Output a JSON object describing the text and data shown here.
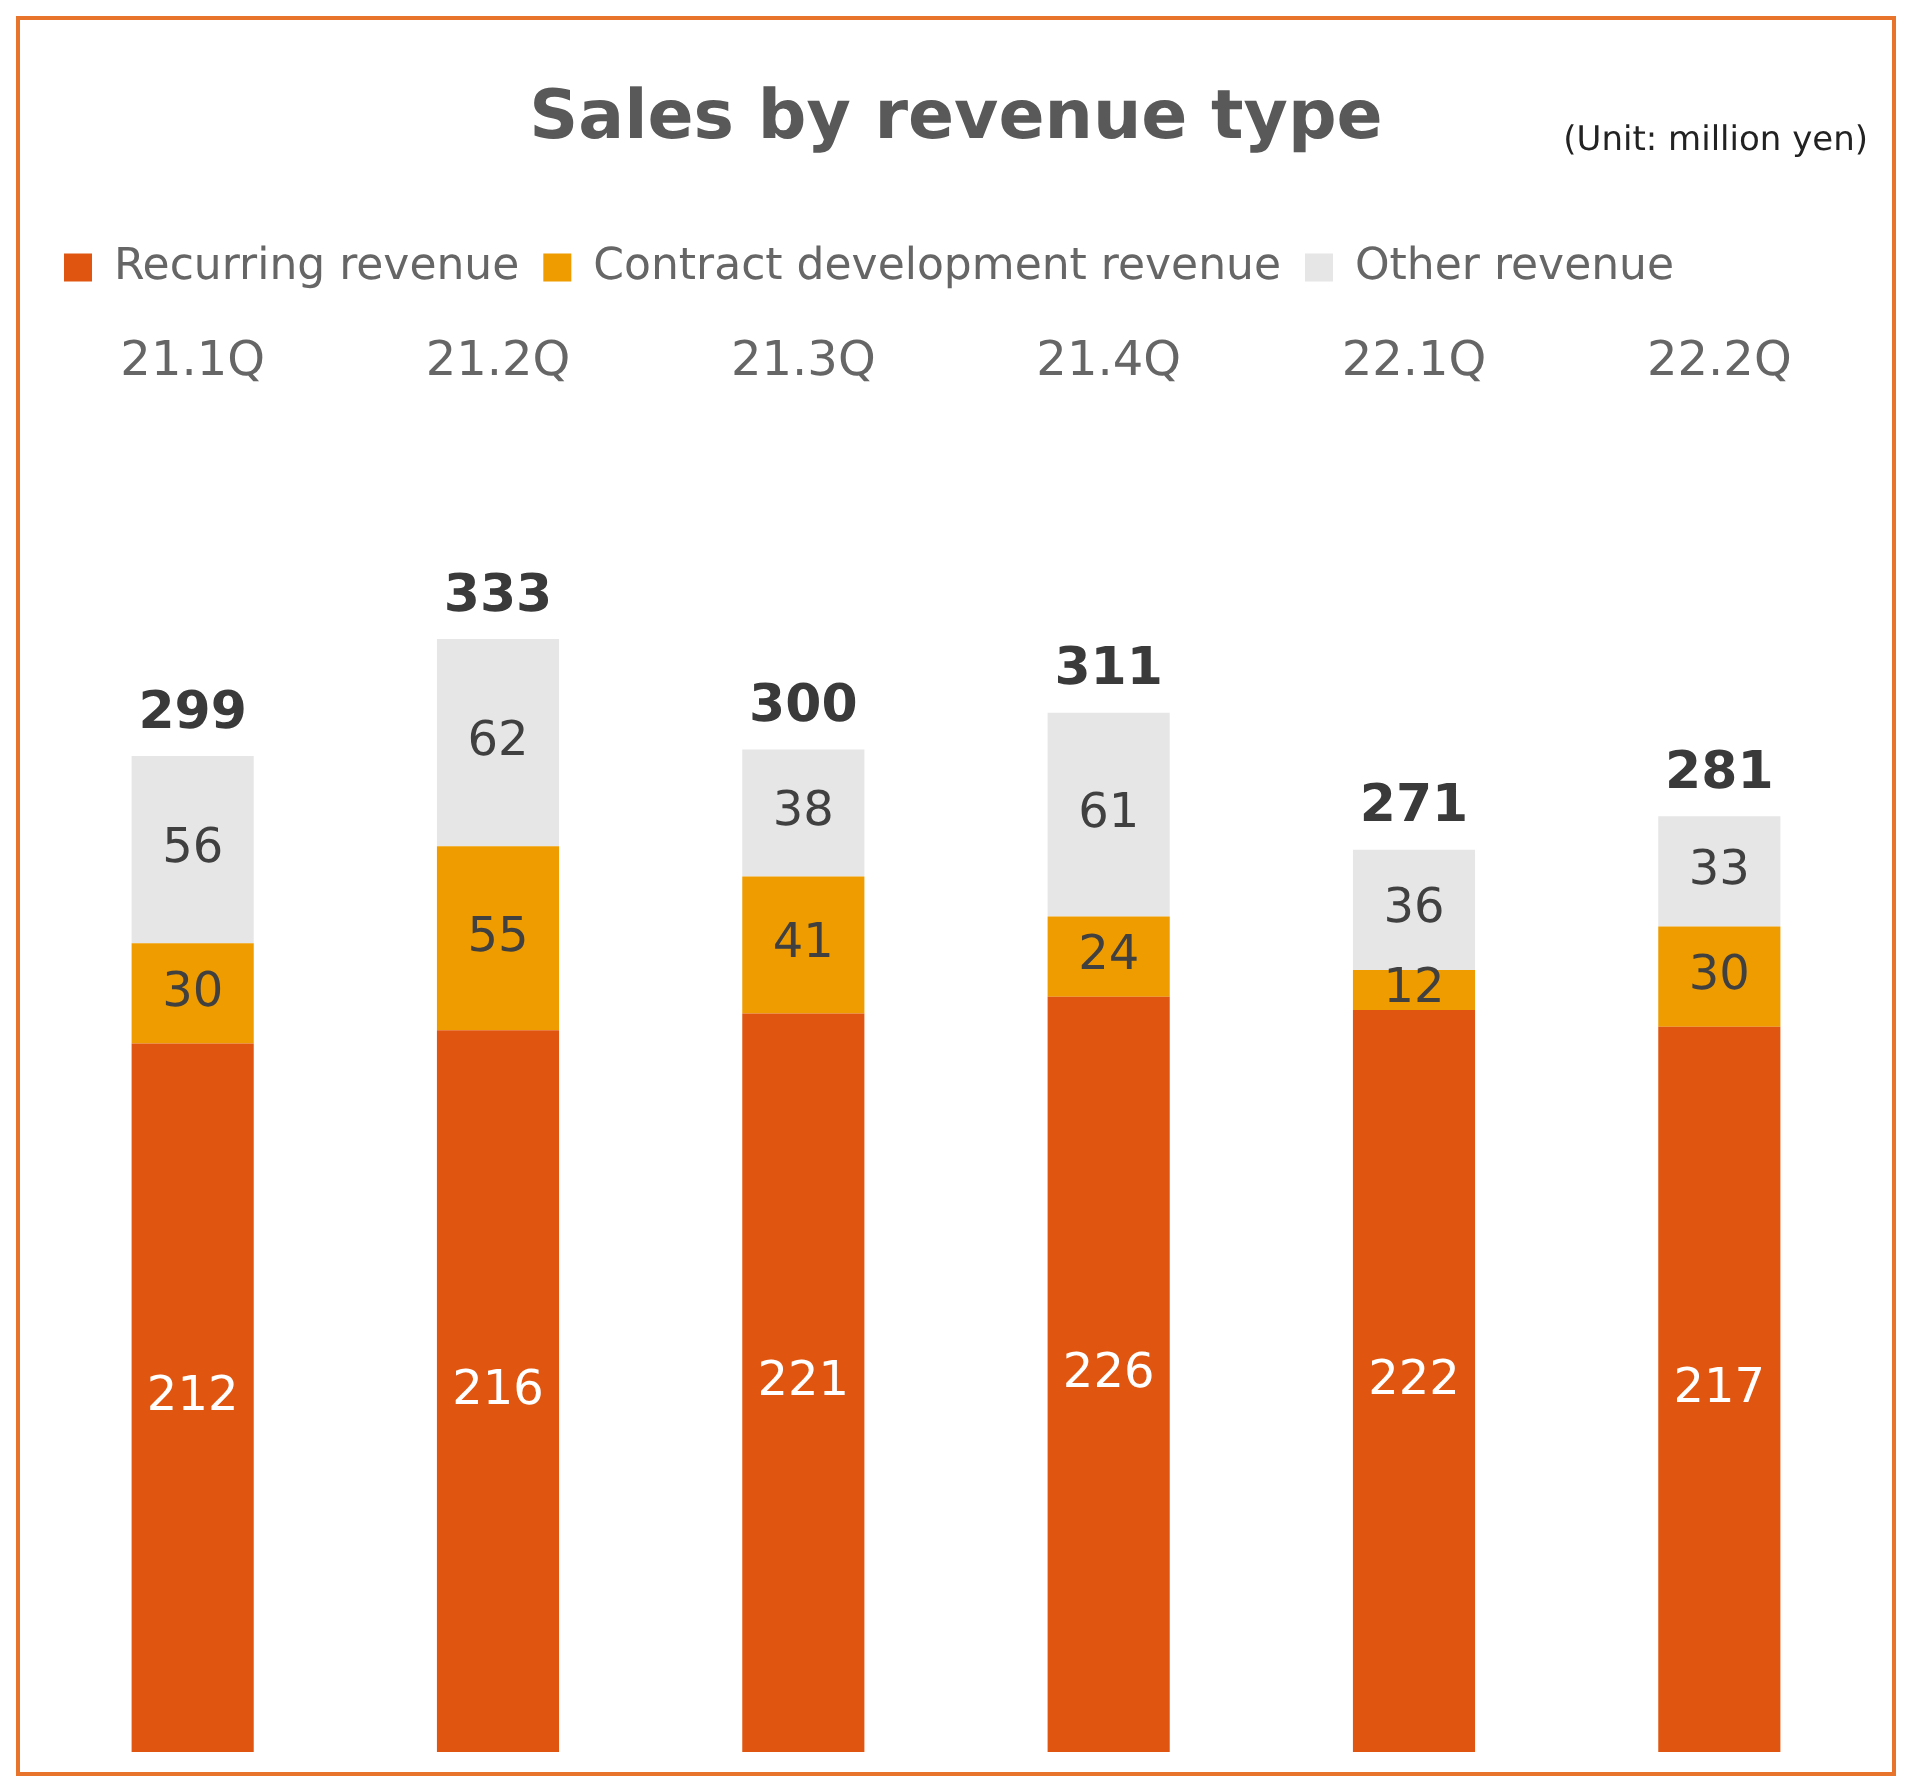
{
  "chart_data": {
    "type": "bar",
    "title": "Sales by revenue type",
    "annotations": [
      "(Unit: million yen)"
    ],
    "categories": [
      "21.1Q",
      "21.2Q",
      "21.3Q",
      "21.4Q",
      "22.1Q",
      "22.2Q"
    ],
    "series": [
      {
        "name": "Recurring revenue",
        "color": "#e05610",
        "values": [
          212,
          216,
          221,
          226,
          222,
          217
        ]
      },
      {
        "name": "Contract development revenue",
        "color": "#ee9c00",
        "values": [
          30,
          55,
          41,
          24,
          12,
          30
        ]
      },
      {
        "name": "Other revenue",
        "color": "#e6e6e6",
        "values": [
          56,
          62,
          38,
          61,
          36,
          33
        ]
      }
    ],
    "stacked": true,
    "data_labels": true,
    "totals": [
      "299",
      "333",
      "300",
      "311",
      "271",
      "281"
    ],
    "legend": "top left",
    "grid": false,
    "tick_labels": "x"
  }
}
